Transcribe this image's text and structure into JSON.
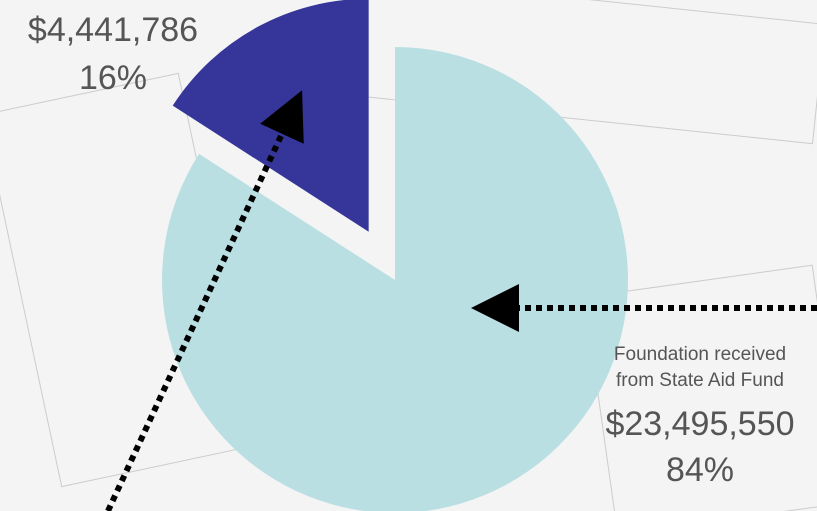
{
  "chart_data": {
    "type": "pie",
    "categories": [
      null,
      "Foundation received from State Aid Fund"
    ],
    "values": [
      4441786,
      23495550
    ],
    "value_labels": [
      "$4,441,786",
      "$23,495,550"
    ],
    "percents": [
      16,
      84
    ],
    "percent_labels": [
      "16%",
      "84%"
    ],
    "colors": [
      "#35359a",
      "#b9dfe3"
    ]
  }
}
